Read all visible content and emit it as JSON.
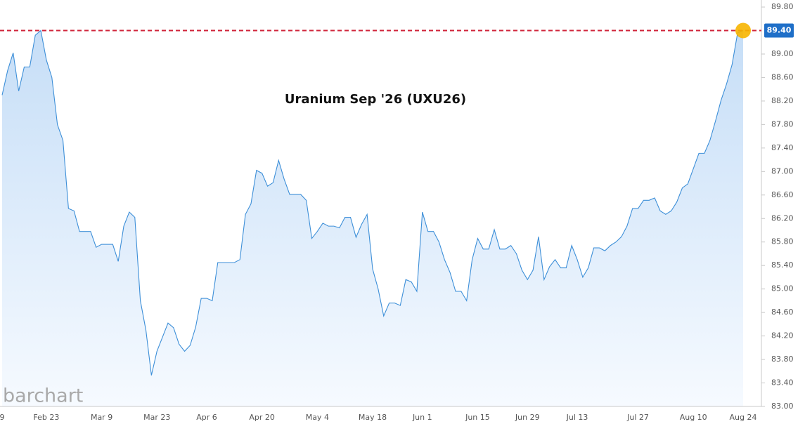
{
  "chart_data": {
    "type": "area",
    "title": "Uranium Sep '26 (UXU26)",
    "watermark": "barchart",
    "categories": [
      "9",
      null,
      null,
      null,
      null,
      null,
      null,
      null,
      "Feb 23",
      null,
      null,
      null,
      null,
      null,
      null,
      null,
      null,
      null,
      "Mar 9",
      null,
      null,
      null,
      null,
      null,
      null,
      null,
      null,
      null,
      "Mar 23",
      null,
      null,
      null,
      null,
      null,
      null,
      null,
      null,
      "Apr 6",
      null,
      null,
      null,
      null,
      null,
      null,
      null,
      null,
      null,
      "Apr 20",
      null,
      null,
      null,
      null,
      null,
      null,
      null,
      null,
      null,
      "May 4",
      null,
      null,
      null,
      null,
      null,
      null,
      null,
      null,
      null,
      "May 18",
      null,
      null,
      null,
      null,
      null,
      null,
      null,
      null,
      "Jun 1",
      null,
      null,
      null,
      null,
      null,
      null,
      null,
      null,
      null,
      "Jun 15",
      null,
      null,
      null,
      null,
      null,
      null,
      null,
      null,
      "Jun 29",
      null,
      null,
      null,
      null,
      null,
      null,
      null,
      null,
      "Jul 13",
      null,
      null,
      null,
      null,
      null,
      null,
      null,
      null,
      null,
      null,
      "Jul 27",
      null,
      null,
      null,
      null,
      null,
      null,
      null,
      null,
      null,
      "Aug 10",
      null,
      null,
      null,
      null,
      null,
      null,
      null,
      null,
      "Aug 24"
    ],
    "values": [
      88.3,
      88.72,
      89.02,
      88.37,
      88.78,
      88.78,
      89.32,
      89.4,
      88.9,
      88.6,
      87.8,
      87.53,
      86.37,
      86.33,
      85.98,
      85.98,
      85.98,
      85.71,
      85.76,
      85.76,
      85.76,
      85.47,
      86.07,
      86.31,
      86.22,
      84.8,
      84.3,
      83.53,
      83.94,
      84.18,
      84.42,
      84.34,
      84.06,
      83.94,
      84.04,
      84.35,
      84.84,
      84.84,
      84.8,
      85.45,
      85.45,
      85.45,
      85.45,
      85.5,
      86.27,
      86.45,
      87.02,
      86.97,
      86.75,
      86.81,
      87.19,
      86.87,
      86.61,
      86.61,
      86.61,
      86.51,
      85.86,
      85.98,
      86.12,
      86.07,
      86.07,
      86.04,
      86.22,
      86.22,
      85.88,
      86.1,
      86.27,
      85.34,
      85.0,
      84.54,
      84.76,
      84.76,
      84.72,
      85.16,
      85.12,
      84.96,
      86.31,
      85.98,
      85.98,
      85.8,
      85.5,
      85.28,
      84.96,
      84.96,
      84.8,
      85.5,
      85.86,
      85.68,
      85.68,
      86.01,
      85.68,
      85.68,
      85.74,
      85.6,
      85.32,
      85.16,
      85.32,
      85.89,
      85.16,
      85.38,
      85.5,
      85.36,
      85.36,
      85.74,
      85.5,
      85.2,
      85.36,
      85.7,
      85.7,
      85.65,
      85.74,
      85.8,
      85.89,
      86.07,
      86.37,
      86.37,
      86.51,
      86.51,
      86.55,
      86.33,
      86.27,
      86.33,
      86.48,
      86.72,
      86.79,
      87.05,
      87.31,
      87.31,
      87.53,
      87.86,
      88.21,
      88.49,
      88.82,
      89.36,
      89.4
    ],
    "color": "#3d8fd8",
    "ylim": [
      83.0,
      89.92
    ],
    "yticks": [
      {
        "value": 83.0,
        "label": "83.00"
      },
      {
        "value": 83.4,
        "label": "83.40"
      },
      {
        "value": 83.8,
        "label": "83.80"
      },
      {
        "value": 84.2,
        "label": "84.20"
      },
      {
        "value": 84.6,
        "label": "84.60"
      },
      {
        "value": 85.0,
        "label": "85.00"
      },
      {
        "value": 85.4,
        "label": "85.40"
      },
      {
        "value": 85.8,
        "label": "85.80"
      },
      {
        "value": 86.2,
        "label": "86.20"
      },
      {
        "value": 86.6,
        "label": "86.60"
      },
      {
        "value": 87.0,
        "label": "87.00"
      },
      {
        "value": 87.4,
        "label": "87.40"
      },
      {
        "value": 87.8,
        "label": "87.80"
      },
      {
        "value": 88.2,
        "label": "88.20"
      },
      {
        "value": 88.6,
        "label": "88.60"
      },
      {
        "value": 89.0,
        "label": "89.00"
      },
      {
        "value": 89.8,
        "label": "89.80"
      }
    ],
    "reference_line": {
      "value": 89.4,
      "label": "89.40",
      "color": "#d0243a"
    }
  }
}
